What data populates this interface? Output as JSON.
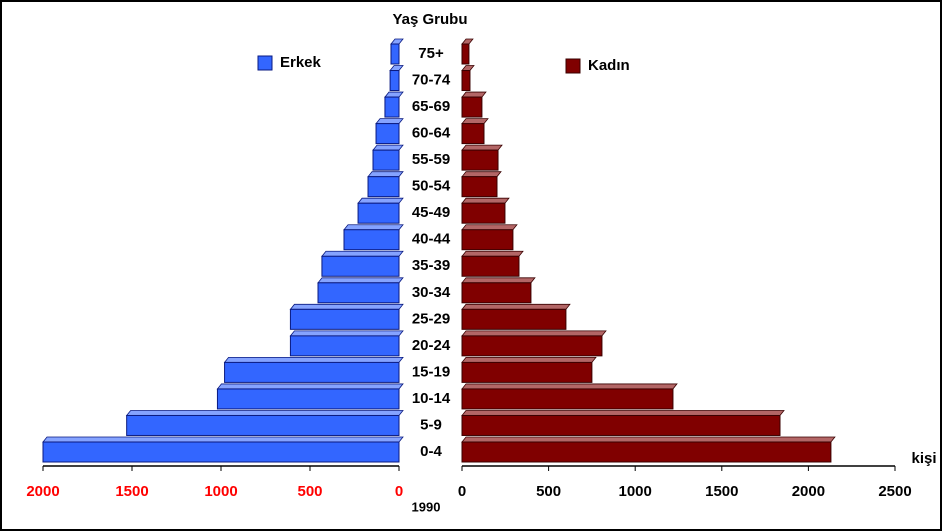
{
  "chart_data": {
    "type": "pyramid",
    "title": "Yaş Grubu",
    "x_label": "kişi",
    "year": "1990",
    "categories": [
      "0-4",
      "5-9",
      "10-14",
      "15-19",
      "20-24",
      "25-29",
      "30-34",
      "35-39",
      "40-44",
      "45-49",
      "50-54",
      "55-59",
      "60-64",
      "65-69",
      "70-74",
      "75+"
    ],
    "series": [
      {
        "name": "Erkek",
        "color": "#3366ff",
        "values": [
          2000,
          1530,
          1020,
          980,
          610,
          610,
          455,
          433,
          309,
          230,
          174,
          146,
          129,
          79,
          50,
          45
        ],
        "xlim": [
          0,
          2000
        ],
        "xticks": [
          0,
          500,
          1000,
          1500,
          2000
        ],
        "tick_color": "#ff0000"
      },
      {
        "name": "Kadın",
        "color": "#800000",
        "values": [
          2130,
          1836,
          1218,
          750,
          808,
          600,
          398,
          329,
          294,
          248,
          202,
          208,
          127,
          115,
          46,
          40
        ],
        "xlim": [
          0,
          2500
        ],
        "xticks": [
          0,
          500,
          1000,
          1500,
          2000,
          2500
        ],
        "tick_color": "#000000"
      }
    ]
  }
}
